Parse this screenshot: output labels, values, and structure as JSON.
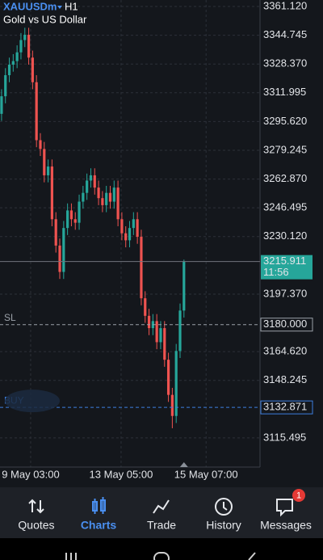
{
  "header": {
    "symbol": "XAUUSDm",
    "timeframe": "H1",
    "description": "Gold vs US Dollar"
  },
  "chart_data": {
    "type": "candlestick",
    "open": [
      3300,
      3310,
      3322,
      3328,
      3330,
      3335,
      3342,
      3345,
      3332,
      3318,
      3285,
      3280,
      3265,
      3270,
      3240,
      3225,
      3210,
      3235,
      3245,
      3240,
      3238,
      3250,
      3255,
      3262,
      3265,
      3258,
      3252,
      3248,
      3255,
      3250,
      3258,
      3240,
      3232,
      3228,
      3235,
      3240,
      3230,
      3195,
      3185,
      3178,
      3182,
      3170,
      3178,
      3160,
      3140,
      3128,
      3165,
      3188
    ],
    "high": [
      3314,
      3326,
      3332,
      3334,
      3339,
      3346,
      3349,
      3349,
      3336,
      3322,
      3289,
      3284,
      3274,
      3274,
      3244,
      3229,
      3239,
      3249,
      3249,
      3244,
      3254,
      3259,
      3266,
      3269,
      3269,
      3262,
      3256,
      3259,
      3259,
      3262,
      3262,
      3244,
      3236,
      3239,
      3244,
      3244,
      3234,
      3199,
      3189,
      3186,
      3186,
      3182,
      3182,
      3164,
      3144,
      3169,
      3192,
      3217
    ],
    "low": [
      3296,
      3306,
      3318,
      3324,
      3326,
      3331,
      3338,
      3328,
      3314,
      3281,
      3276,
      3261,
      3261,
      3236,
      3221,
      3206,
      3206,
      3231,
      3236,
      3234,
      3234,
      3246,
      3251,
      3258,
      3254,
      3248,
      3244,
      3244,
      3246,
      3246,
      3236,
      3228,
      3224,
      3224,
      3231,
      3226,
      3191,
      3181,
      3174,
      3174,
      3166,
      3166,
      3156,
      3136,
      3121,
      3124,
      3161,
      3184
    ],
    "close": [
      3310,
      3322,
      3328,
      3330,
      3335,
      3342,
      3345,
      3332,
      3318,
      3285,
      3280,
      3265,
      3270,
      3240,
      3225,
      3210,
      3235,
      3245,
      3240,
      3238,
      3250,
      3255,
      3262,
      3265,
      3258,
      3252,
      3248,
      3255,
      3250,
      3258,
      3240,
      3232,
      3228,
      3235,
      3240,
      3230,
      3195,
      3185,
      3178,
      3182,
      3170,
      3178,
      3160,
      3140,
      3128,
      3165,
      3188,
      3215.911
    ],
    "up_color": "#26a69a",
    "down_color": "#ef5350",
    "ylim": [
      3098.9,
      3364.8
    ],
    "yticks": [
      {
        "value": 3361.12,
        "label": "3361.120"
      },
      3344.745,
      {
        "value": 3328.37,
        "label": "3328.370"
      },
      3311.995,
      {
        "value": 3295.62,
        "label": "3295.620"
      },
      3279.245,
      {
        "value": 3262.87,
        "label": "3262.870"
      },
      3246.495,
      {
        "value": 3230.12,
        "label": "3230.120"
      },
      {
        "value": 3197.37,
        "label": "3197.370"
      },
      {
        "value": 3164.62,
        "label": "3164.620"
      },
      3148.245,
      3115.495
    ],
    "xlim": [
      -0.4,
      66.6
    ],
    "xticks": [
      {
        "value": 7.5,
        "label": "9 May 03:00"
      },
      {
        "value": 30.8,
        "label": "13 May 05:00"
      },
      {
        "value": 52.7,
        "label": "15 May 07:00"
      }
    ],
    "grid": true,
    "current_price": {
      "value": 3215.911,
      "time": "11:56",
      "color": "#26a69a"
    },
    "price_lines": [
      {
        "name": "SL",
        "value": 3180,
        "label": "3180.000",
        "color": "#9aa0a8"
      },
      {
        "name": "BUY",
        "value": 3132.871,
        "label": "3132.871",
        "color": "#3d7fe0"
      }
    ]
  },
  "nav": {
    "items": [
      "Quotes",
      "Charts",
      "Trade",
      "History",
      "Messages"
    ],
    "active": 1,
    "badge": 1
  }
}
